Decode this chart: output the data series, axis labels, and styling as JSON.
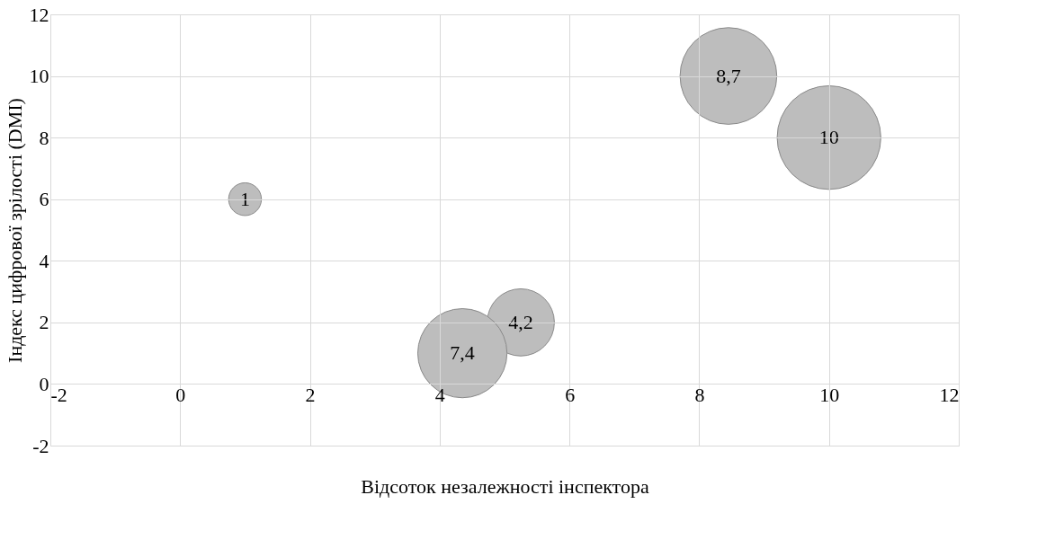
{
  "chart_data": {
    "type": "bubble",
    "xlabel": "Відсоток незалежності інспектора",
    "ylabel": "Індекс цифрової зрілості (DMI)",
    "x": [
      1,
      5.25,
      4.35,
      8.45,
      10
    ],
    "series": [
      {
        "color": "#bdbdbd",
        "values": [
          6,
          2,
          1,
          10,
          8
        ],
        "sizes": [
          1,
          4.2,
          7.4,
          8.7,
          10
        ],
        "value_labels": [
          "1",
          "4,2",
          "7,4",
          "8,7",
          "10"
        ]
      }
    ],
    "xlim": [
      -2,
      12
    ],
    "xticks": [
      -2,
      0,
      2,
      4,
      6,
      8,
      10,
      12
    ],
    "ylim": [
      -2,
      12
    ],
    "yticks": [
      -2,
      0,
      2,
      4,
      6,
      8,
      10,
      12
    ],
    "grid": true
  }
}
